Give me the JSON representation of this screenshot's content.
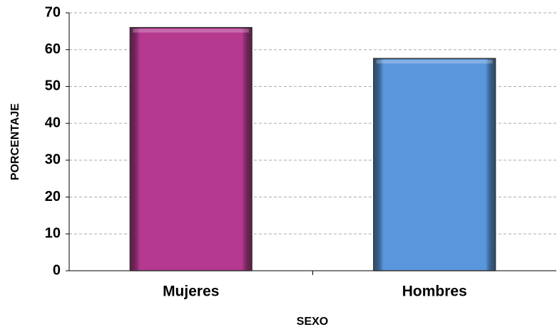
{
  "chart_data": {
    "type": "bar",
    "categories": [
      "Mujeres",
      "Hombres"
    ],
    "values": [
      66.0,
      57.6
    ],
    "colors": [
      "#b5398f",
      "#5a96dc"
    ],
    "xlabel": "SEXO",
    "ylabel": "PORCENTAJE",
    "ylim": [
      0,
      70
    ],
    "yticks": [
      0,
      10,
      20,
      30,
      40,
      50,
      60,
      70
    ],
    "grid": true
  }
}
